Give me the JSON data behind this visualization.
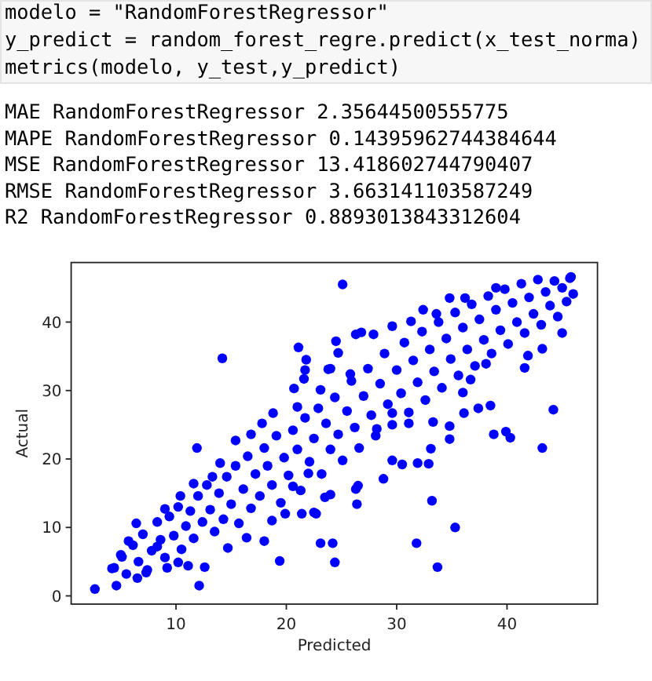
{
  "chart_data": {
    "type": "scatter",
    "xlabel": "Predicted",
    "ylabel": "Actual",
    "annotations": [
      "modelo = \"RandomForestRegressor\"",
      "y_predict = random_forest_regre.predict(x_test_norma)",
      "metrics(modelo, y_test,y_predict)",
      "MAE RandomForestRegressor 2.35644500555775",
      "MAPE RandomForestRegressor 0.14395962744384644",
      "MSE RandomForestRegressor 13.418602744790407",
      "RMSE RandomForestRegressor 3.663141103587249",
      "R2 RandomForestRegressor 0.8893013843312604"
    ],
    "color": "#0000ff",
    "marker": "circle",
    "xlim": [
      0.5,
      48.2
    ],
    "ylim": [
      -1.2,
      48.7
    ],
    "xticks": [
      10,
      20,
      30,
      40
    ],
    "yticks": [
      0,
      10,
      20,
      30,
      40
    ],
    "x": [
      4.2,
      5.0,
      5.5,
      6.1,
      6.6,
      7.0,
      7.4,
      7.8,
      8.3,
      8.6,
      9.0,
      9.4,
      9.8,
      10.2,
      10.5,
      10.9,
      11.3,
      11.6,
      12.0,
      12.4,
      12.8,
      13.1,
      13.5,
      13.9,
      14.3,
      14.6,
      15.0,
      15.4,
      15.7,
      16.1,
      16.5,
      16.8,
      17.2,
      17.6,
      18.0,
      18.3,
      18.7,
      19.1,
      19.5,
      19.8,
      20.2,
      20.6,
      21.0,
      21.3,
      21.7,
      22.1,
      22.5,
      22.9,
      23.2,
      23.6,
      24.0,
      24.4,
      24.7,
      25.1,
      25.5,
      25.9,
      26.2,
      26.6,
      27.0,
      27.4,
      27.7,
      28.1,
      28.5,
      28.9,
      29.2,
      29.6,
      30.0,
      30.4,
      30.7,
      31.1,
      31.5,
      31.9,
      32.3,
      32.6,
      33.0,
      33.4,
      33.8,
      34.1,
      34.5,
      34.9,
      35.3,
      35.6,
      36.0,
      36.4,
      36.8,
      37.1,
      37.5,
      37.9,
      38.3,
      38.6,
      39.0,
      39.4,
      39.8,
      40.1,
      40.5,
      40.9,
      41.3,
      41.6,
      42.0,
      42.4,
      42.8,
      43.1,
      43.5,
      43.9,
      44.3,
      44.6,
      45.0,
      45.4,
      45.7,
      2.65,
      4.6,
      12.1,
      12.6,
      19.4,
      23.1,
      24.2,
      24.4,
      21.4,
      22.7,
      18.0,
      14.7,
      16.4,
      11.1,
      4.4,
      5.1,
      6.5,
      7.3,
      6.4,
      9.0,
      10.4,
      11.6,
      13.3,
      14.0,
      10.2,
      9.2,
      5.7,
      8.3,
      18.7,
      19.9,
      20.6,
      22.0,
      11.9,
      14.2,
      21.1,
      21.8,
      21.7,
      21.6,
      20.7,
      23.1,
      23.8,
      21.0,
      18.8,
      17.8,
      16.8,
      15.4,
      25.1,
      24.5,
      32.4,
      34.8,
      45.8,
      46.0,
      45.0,
      43.2,
      41.9,
      41.6,
      44.2,
      43.2,
      38.8,
      39.9,
      40.3,
      38.5,
      37.4,
      36.1,
      34.8,
      34.8,
      33.3,
      33.1,
      29.6,
      30.5,
      31.9,
      32.9,
      28.8,
      26.3,
      26.5,
      26.4,
      33.2,
      35.3,
      31.8,
      33.7,
      23.5,
      24.0,
      22.5,
      29.6,
      26.3,
      26.8,
      27.9,
      31.3,
      33.6,
      36.2,
      39.0,
      24.0,
      24.7,
      25.8,
      36.0,
      36.7,
      38.1,
      29.6,
      31.1,
      28.2
    ],
    "values": [
      4.0,
      6.0,
      3.2,
      7.4,
      5.0,
      9.0,
      3.8,
      6.6,
      10.8,
      8.2,
      5.6,
      11.6,
      8.8,
      13.0,
      6.8,
      10.2,
      12.4,
      8.4,
      14.6,
      10.8,
      16.2,
      12.6,
      9.4,
      15.0,
      11.2,
      17.4,
      13.4,
      19.0,
      10.6,
      15.6,
      20.4,
      12.8,
      17.8,
      14.6,
      21.6,
      19.0,
      16.2,
      23.4,
      13.6,
      20.2,
      17.6,
      24.2,
      21.4,
      15.4,
      26.0,
      19.6,
      23.0,
      27.4,
      17.8,
      25.2,
      21.4,
      29.0,
      23.6,
      19.8,
      27.0,
      31.4,
      24.6,
      21.6,
      29.2,
      33.2,
      26.4,
      23.4,
      31.0,
      35.4,
      28.0,
      25.0,
      33.0,
      29.6,
      37.0,
      26.8,
      34.4,
      31.2,
      38.6,
      28.6,
      36.0,
      32.8,
      40.0,
      30.4,
      37.6,
      34.6,
      41.4,
      32.2,
      39.2,
      36.0,
      42.6,
      33.6,
      40.4,
      37.4,
      43.8,
      35.4,
      41.8,
      38.8,
      44.8,
      36.8,
      42.8,
      40.0,
      45.6,
      38.4,
      43.6,
      41.2,
      46.2,
      39.6,
      44.4,
      42.4,
      46.0,
      40.8,
      45.0,
      43.0,
      46.4,
      1.0,
      1.5,
      1.5,
      4.2,
      5.1,
      7.7,
      7.7,
      4.9,
      12.0,
      12.0,
      8.0,
      7.0,
      8.5,
      4.4,
      4.1,
      5.7,
      2.6,
      3.4,
      10.6,
      12.7,
      14.6,
      16.4,
      17.4,
      19.4,
      4.9,
      4.1,
      8.0,
      7.2,
      11.0,
      12.0,
      16.0,
      17.9,
      21.6,
      34.7,
      36.3,
      34.5,
      33.0,
      31.7,
      30.3,
      30.1,
      33.1,
      27.6,
      26.7,
      25.2,
      23.6,
      22.7,
      45.5,
      37.2,
      41.8,
      43.5,
      46.6,
      44.1,
      38.4,
      36.1,
      35.1,
      33.3,
      27.2,
      21.6,
      23.6,
      24.0,
      23.1,
      27.8,
      27.4,
      26.7,
      24.8,
      22.9,
      25.4,
      21.5,
      19.8,
      19.2,
      19.4,
      19.3,
      17.1,
      15.6,
      16.1,
      13.4,
      13.9,
      10.0,
      7.7,
      4.2,
      14.4,
      14.8,
      12.2,
      39.4,
      38.2,
      38.5,
      38.2,
      40.1,
      41.2,
      43.5,
      45.0,
      33.2,
      35.5,
      32.4,
      29.7,
      31.6,
      33.9,
      26.7,
      25.2,
      24.4
    ]
  }
}
